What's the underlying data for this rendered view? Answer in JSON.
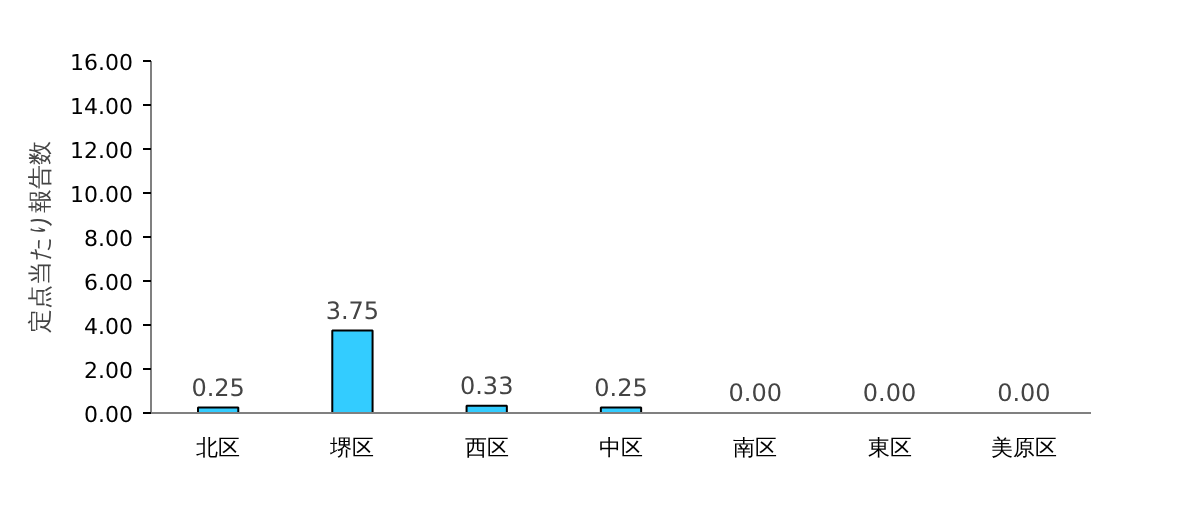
{
  "chart_data": {
    "type": "bar",
    "ylabel": "定点当たり報告数",
    "categories": [
      "北区",
      "堺区",
      "西区",
      "中区",
      "南区",
      "東区",
      "美原区"
    ],
    "values": [
      0.25,
      3.75,
      0.33,
      0.25,
      0.0,
      0.0,
      0.0
    ],
    "value_labels": [
      "0.25",
      "3.75",
      "0.33",
      "0.25",
      "0.00",
      "0.00",
      "0.00"
    ],
    "color": "#33ccff",
    "ylim": [
      0,
      16
    ],
    "yticks": [
      {
        "value": 0,
        "label": "0.00"
      },
      {
        "value": 2,
        "label": "2.00"
      },
      {
        "value": 4,
        "label": "4.00"
      },
      {
        "value": 6,
        "label": "6.00"
      },
      {
        "value": 8,
        "label": "8.00"
      },
      {
        "value": 10,
        "label": "10.00"
      },
      {
        "value": 12,
        "label": "12.00"
      },
      {
        "value": 14,
        "label": "14.00"
      },
      {
        "value": 16,
        "label": "16.00"
      }
    ],
    "grid": false
  }
}
